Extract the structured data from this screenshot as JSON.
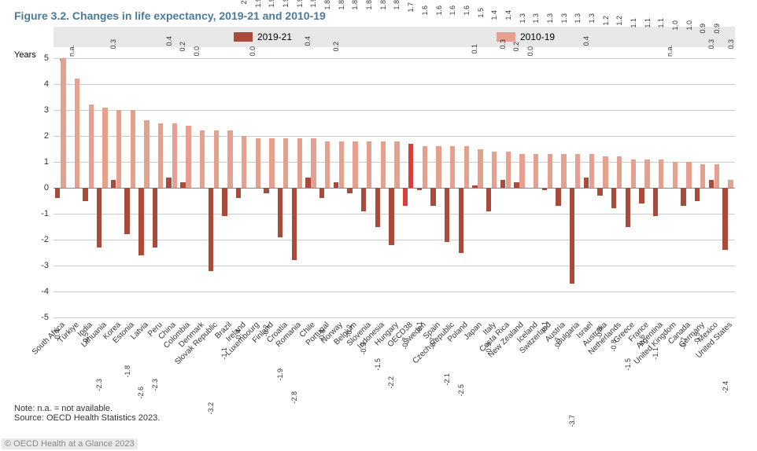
{
  "title": "Figure 3.2. Changes in life expectancy, 2019-21 and 2010-19",
  "legend": {
    "s1": "2019-21",
    "s2": "2010-19"
  },
  "ylabel": "Years",
  "note": "Note: n.a. = not available.",
  "source": "Source: OECD Health Statistics 2023.",
  "watermark": "© OECD Health at a Glance 2023",
  "chart": {
    "type": "bar",
    "ylim": [
      -5,
      5
    ],
    "ytick_step": 1,
    "grid_color": "#cccccc",
    "zero_color": "#888888",
    "background_color": "#ffffff",
    "legend_bg": "#e8e8e8",
    "series_colors": {
      "s1": "#a84b3a",
      "s2": "#e6a08f",
      "highlight": "#d83f3a"
    },
    "label_fontsize": 9,
    "axis_fontsize": 11,
    "countries": [
      {
        "name": "South Africa",
        "s1": -0.4,
        "s2": 8.3,
        "s2_display": 5,
        "s2_break": true
      },
      {
        "name": "Türkiye",
        "s1": null,
        "s1_label": "n.a.",
        "s2": 4.2
      },
      {
        "name": "India",
        "s1": -0.5,
        "s2": 3.2
      },
      {
        "name": "Lithuania",
        "s1": -2.3,
        "s2": 3.1
      },
      {
        "name": "Korea",
        "s1": 0.3,
        "s2": 3.0
      },
      {
        "name": "Estonia",
        "s1": -1.8,
        "s2": 3.0
      },
      {
        "name": "Latvia",
        "s1": -2.6,
        "s2": 2.6
      },
      {
        "name": "Peru",
        "s1": -2.3,
        "s2": 2.5
      },
      {
        "name": "China",
        "s1": 0.4,
        "s2": 2.5
      },
      {
        "name": "Colombia",
        "s1": 0.2,
        "s2": 2.4
      },
      {
        "name": "Denmark",
        "s1": 0.0,
        "s2": 2.2
      },
      {
        "name": "Slovak Republic",
        "s1": -3.2,
        "s2": 2.2
      },
      {
        "name": "Brazil",
        "s1": -1.1,
        "s2": 2.2
      },
      {
        "name": "Ireland",
        "s1": -0.4,
        "s2": 2.0
      },
      {
        "name": "Luxembourg",
        "s1": 0.0,
        "s2": 1.9
      },
      {
        "name": "Finland",
        "s1": -0.2,
        "s2": 1.9
      },
      {
        "name": "Croatia",
        "s1": -1.9,
        "s2": 1.9
      },
      {
        "name": "Romania",
        "s1": -2.8,
        "s2": 1.9
      },
      {
        "name": "Chile",
        "s1": 0.4,
        "s2": 1.9
      },
      {
        "name": "Portugal",
        "s1": -0.4,
        "s2": 1.8
      },
      {
        "name": "Norway",
        "s1": 0.2,
        "s2": 1.8
      },
      {
        "name": "Belgium",
        "s1": -0.2,
        "s2": 1.8
      },
      {
        "name": "Slovenia",
        "s1": -0.9,
        "s2": 1.8
      },
      {
        "name": "Indonesia",
        "s1": -1.5,
        "s2": 1.8
      },
      {
        "name": "Hungary",
        "s1": -2.2,
        "s2": 1.8
      },
      {
        "name": "OECD38",
        "s1": -0.7,
        "s2": 1.7,
        "highlight": true
      },
      {
        "name": "Sweden",
        "s1": -0.1,
        "s2": 1.6
      },
      {
        "name": "Spain",
        "s1": -0.7,
        "s2": 1.6
      },
      {
        "name": "Czech Republic",
        "s1": -2.1,
        "s2": 1.6
      },
      {
        "name": "Poland",
        "s1": -2.5,
        "s2": 1.6
      },
      {
        "name": "Japan",
        "s1": 0.1,
        "s2": 1.5
      },
      {
        "name": "Italy",
        "s1": -0.9,
        "s2": 1.4
      },
      {
        "name": "Costa Rica",
        "s1": 0.3,
        "s2": 1.4
      },
      {
        "name": "New Zealand",
        "s1": 0.2,
        "s2": 1.3
      },
      {
        "name": "Iceland",
        "s1": 0.0,
        "s2": 1.3
      },
      {
        "name": "Switzerland",
        "s1": -0.1,
        "s2": 1.3
      },
      {
        "name": "Austria",
        "s1": -0.7,
        "s2": 1.3
      },
      {
        "name": "Bulgaria",
        "s1": -3.7,
        "s2": 1.3
      },
      {
        "name": "Israel",
        "s1": 0.4,
        "s2": 1.3
      },
      {
        "name": "Australia",
        "s1": -0.3,
        "s2": 1.2
      },
      {
        "name": "Netherlands",
        "s1": -0.8,
        "s2": 1.2
      },
      {
        "name": "Greece",
        "s1": -1.5,
        "s2": 1.1
      },
      {
        "name": "France",
        "s1": -0.6,
        "s2": 1.1
      },
      {
        "name": "Argentina",
        "s1": -1.1,
        "s2": 1.1
      },
      {
        "name": "United Kingdom",
        "s1": null,
        "s1_label": "n.a.",
        "s2": 1.0
      },
      {
        "name": "Canada",
        "s1": -0.7,
        "s2": 1.0
      },
      {
        "name": "Germany",
        "s1": -0.5,
        "s2": 0.9
      },
      {
        "name": "Mexico",
        "s1": 0.3,
        "s2": 0.9
      },
      {
        "name": "United States",
        "s1": -2.4,
        "s2": 0.3
      }
    ]
  }
}
